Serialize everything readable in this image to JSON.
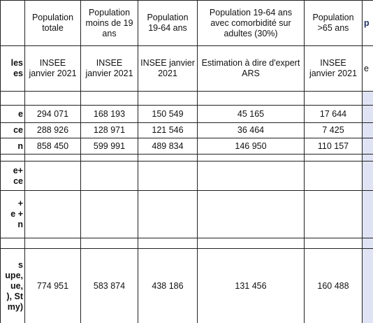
{
  "table": {
    "header": [
      null,
      "Population totale",
      "Population moins de 19 ans",
      "Population 19-64 ans",
      "Population 19-64 ans avec comorbidité sur adultes  (30%)",
      "Population >65 ans",
      "p"
    ],
    "rows": [
      [
        "les\nes",
        "INSEE janvier 2021",
        "INSEE janvier 2021",
        "INSEE janvier 2021",
        "Estimation à dire d'expert ARS",
        "INSEE janvier 2021",
        "e"
      ],
      [
        "e",
        "294 071",
        "168 193",
        "150 549",
        "45 165",
        "17 644",
        null
      ],
      [
        "ce",
        "288 926",
        "128 971",
        "121 546",
        "36 464",
        "7 425",
        null
      ],
      [
        "n",
        "858 450",
        "599 991",
        "489 834",
        "146 950",
        "110 157",
        null
      ],
      [
        "e+\nce",
        null,
        null,
        null,
        null,
        null,
        null
      ],
      [
        "+\ne +\nn",
        null,
        null,
        null,
        null,
        null,
        null
      ],
      [
        "s\nupe,\nue,\n), St\nmy)",
        "774 951",
        "583 874",
        "438 186",
        "131 456",
        "160 488",
        null
      ]
    ]
  }
}
